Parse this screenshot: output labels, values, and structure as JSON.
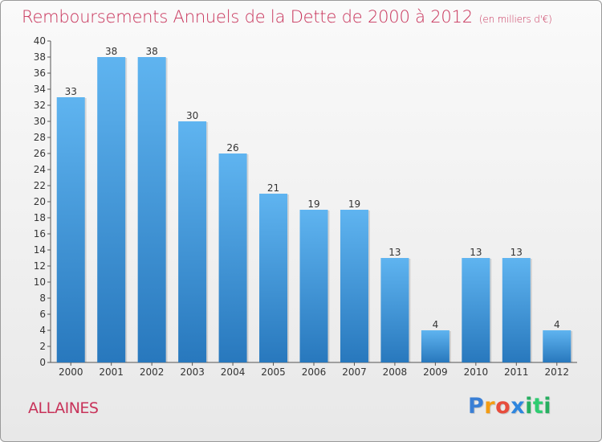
{
  "header": {
    "title": "Remboursements Annuels de la Dette de 2000 à 2012",
    "subtitle": "(en milliers d'€)"
  },
  "commune": "ALLAINES",
  "logo": {
    "letters": [
      "P",
      "r",
      "o",
      "x",
      "i",
      "t",
      "i"
    ],
    "colors": [
      "#3a7fd5",
      "#f39c12",
      "#e74c3c",
      "#2e86de",
      "#27ae60",
      "#2ecc71",
      "#27ae60"
    ]
  },
  "colors": {
    "bar_light": "#5eb3ef",
    "bar_dark": "#2a7cc0",
    "text": "#c8335a"
  },
  "chart_data": {
    "type": "bar",
    "categories": [
      "2000",
      "2001",
      "2002",
      "2003",
      "2004",
      "2005",
      "2006",
      "2007",
      "2008",
      "2009",
      "2010",
      "2011",
      "2012"
    ],
    "values": [
      33,
      38,
      38,
      30,
      26,
      21,
      19,
      19,
      13,
      4,
      13,
      13,
      4
    ],
    "title": "Remboursements Annuels de la Dette de 2000 à 2012",
    "subtitle": "(en milliers d'€)",
    "ylim": [
      0,
      40
    ],
    "yticks": [
      0,
      2,
      4,
      6,
      8,
      10,
      12,
      14,
      16,
      18,
      20,
      22,
      24,
      26,
      28,
      30,
      32,
      34,
      36,
      38,
      40
    ],
    "grid": false
  }
}
